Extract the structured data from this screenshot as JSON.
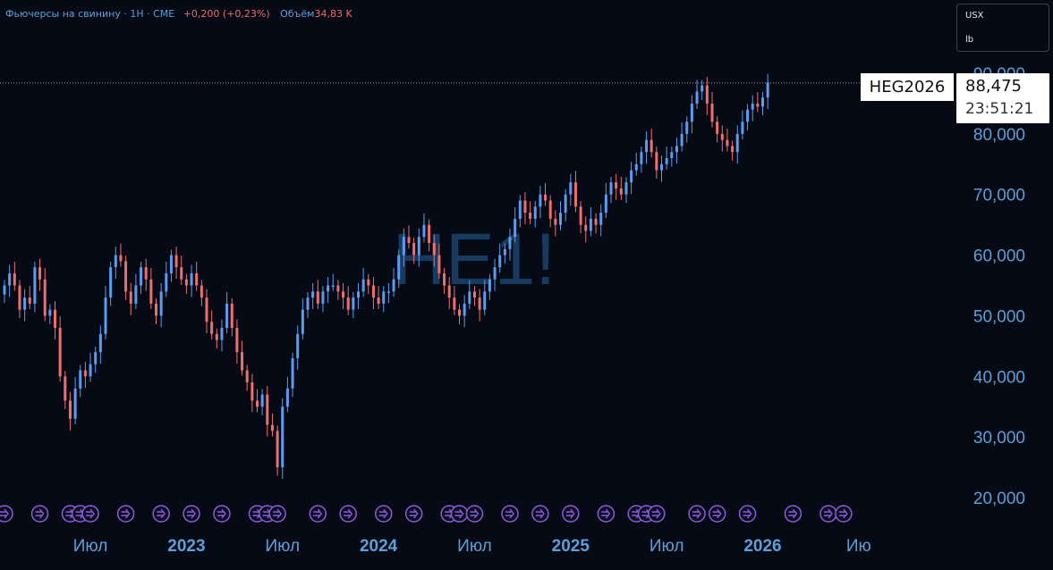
{
  "header": {
    "symbol_line": "Фьючерсы на свинину · 1Н · CME",
    "change": "+0,200 (+0,23%)",
    "volume_label": "Объём",
    "volume_value": "34,83 K"
  },
  "units": {
    "currency": "USX",
    "unit": "lb"
  },
  "price_tag": {
    "value": "88,475",
    "countdown": "23:51:21"
  },
  "contract_tag": "HEG2026",
  "watermark": "HE1!",
  "colors": {
    "up": "#5b9cf0",
    "down": "#ef6f6f",
    "background": "#050a14",
    "axis_text": "#5e9fd8",
    "event_icon": "#8e5ae0"
  },
  "chart_data": {
    "type": "candlestick",
    "title": "",
    "xlabel": "",
    "ylabel": "",
    "ylim": [
      20000,
      90000
    ],
    "y_ticks": [
      "20,000",
      "30,000",
      "40,000",
      "50,000",
      "60,000",
      "70,000",
      "80,000",
      "90,000"
    ],
    "y_tick_values": [
      20000,
      30000,
      40000,
      50000,
      60000,
      70000,
      80000,
      90000
    ],
    "x_ticks": [
      "Июл",
      "2023",
      "Июл",
      "2024",
      "Июл",
      "2025",
      "Июл",
      "2026",
      "Ию"
    ],
    "x_tick_index": [
      17,
      36,
      55,
      74,
      93,
      112,
      131,
      150,
      169
    ],
    "x_tick_bold": [
      false,
      true,
      false,
      true,
      false,
      true,
      false,
      true,
      false
    ],
    "last_price": 88475,
    "event_icon_index": [
      0,
      7,
      13,
      15,
      17,
      24,
      31,
      37,
      43,
      50,
      52,
      54,
      62,
      68,
      75,
      81,
      88,
      90,
      93,
      100,
      106,
      112,
      119,
      125,
      127,
      129,
      137,
      141,
      147,
      156,
      163,
      166
    ],
    "grid": false,
    "candle_closes": [
      55000,
      57000,
      55000,
      51000,
      53000,
      52000,
      58000,
      56000,
      50000,
      51000,
      48000,
      40000,
      36000,
      33000,
      38000,
      41000,
      40000,
      42000,
      44000,
      47000,
      53000,
      58000,
      60000,
      59000,
      54000,
      52000,
      55000,
      58000,
      56000,
      52000,
      50000,
      54000,
      57000,
      60000,
      58000,
      56000,
      55000,
      57000,
      55000,
      53000,
      49000,
      47000,
      46000,
      48000,
      52000,
      48000,
      44000,
      41000,
      39000,
      36000,
      35000,
      37000,
      32000,
      31000,
      25000,
      35000,
      38000,
      43000,
      47000,
      51000,
      53000,
      54000,
      52000,
      54000,
      55000,
      55000,
      54000,
      53000,
      51000,
      53000,
      54000,
      56000,
      55000,
      53000,
      52000,
      54000,
      54000,
      56000,
      60000,
      63000,
      62000,
      60000,
      63000,
      65000,
      62000,
      60000,
      57000,
      55000,
      53000,
      51000,
      50000,
      52000,
      54000,
      53000,
      51000,
      54000,
      56000,
      58000,
      60000,
      61000,
      63000,
      66000,
      69000,
      67000,
      66000,
      68000,
      70000,
      69000,
      66000,
      65000,
      67000,
      70000,
      72000,
      68000,
      65000,
      64000,
      66000,
      65000,
      67000,
      70000,
      72000,
      71000,
      70000,
      72000,
      74000,
      75000,
      77000,
      79000,
      77000,
      74000,
      75000,
      76000,
      77000,
      78000,
      80000,
      82000,
      85000,
      87000,
      88000,
      85000,
      82000,
      80000,
      79000,
      78000,
      77000,
      80000,
      82000,
      84000,
      85000,
      84500,
      86000,
      88475
    ]
  }
}
